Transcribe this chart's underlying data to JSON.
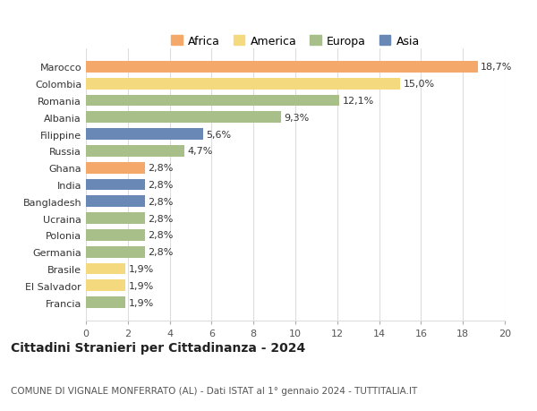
{
  "countries": [
    "Marocco",
    "Colombia",
    "Romania",
    "Albania",
    "Filippine",
    "Russia",
    "Ghana",
    "India",
    "Bangladesh",
    "Ucraina",
    "Polonia",
    "Germania",
    "Brasile",
    "El Salvador",
    "Francia"
  ],
  "values": [
    18.7,
    15.0,
    12.1,
    9.3,
    5.6,
    4.7,
    2.8,
    2.8,
    2.8,
    2.8,
    2.8,
    2.8,
    1.9,
    1.9,
    1.9
  ],
  "labels": [
    "18,7%",
    "15,0%",
    "12,1%",
    "9,3%",
    "5,6%",
    "4,7%",
    "2,8%",
    "2,8%",
    "2,8%",
    "2,8%",
    "2,8%",
    "2,8%",
    "1,9%",
    "1,9%",
    "1,9%"
  ],
  "continents": [
    "Africa",
    "America",
    "Europa",
    "Europa",
    "Asia",
    "Europa",
    "Africa",
    "Asia",
    "Asia",
    "Europa",
    "Europa",
    "Europa",
    "America",
    "America",
    "Europa"
  ],
  "colors": {
    "Africa": "#F4A96A",
    "America": "#F5D97E",
    "Europa": "#A8BF8A",
    "Asia": "#6A88B5"
  },
  "legend_order": [
    "Africa",
    "America",
    "Europa",
    "Asia"
  ],
  "title": "Cittadini Stranieri per Cittadinanza - 2024",
  "subtitle": "COMUNE DI VIGNALE MONFERRATO (AL) - Dati ISTAT al 1° gennaio 2024 - TUTTITALIA.IT",
  "xlim": [
    0,
    20
  ],
  "xticks": [
    0,
    2,
    4,
    6,
    8,
    10,
    12,
    14,
    16,
    18,
    20
  ],
  "background_color": "#ffffff",
  "grid_color": "#dddddd",
  "bar_height": 0.68,
  "title_fontsize": 10,
  "subtitle_fontsize": 7.5,
  "tick_fontsize": 8,
  "label_fontsize": 8,
  "legend_fontsize": 9
}
